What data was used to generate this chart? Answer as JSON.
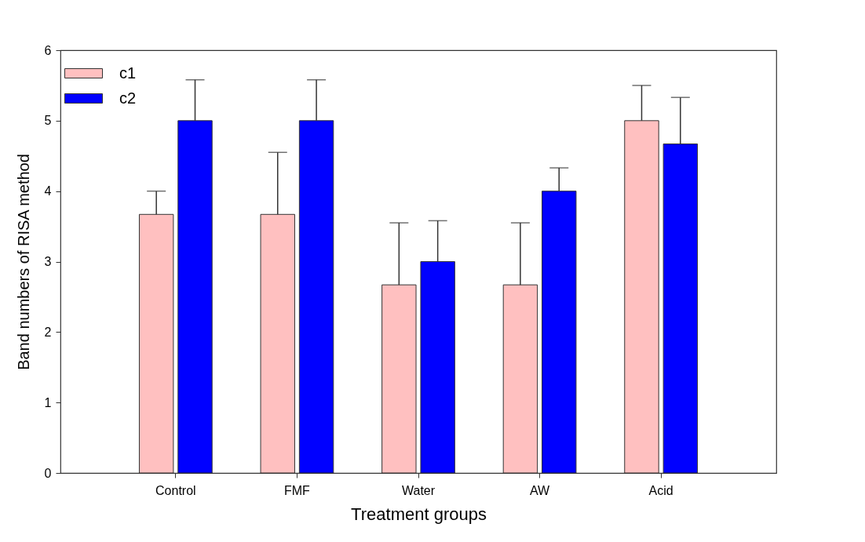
{
  "chart_data": {
    "type": "bar",
    "xlabel": "Treatment groups",
    "ylabel": "Band numbers of RISA method",
    "categories": [
      "Control",
      "FMF",
      "Water",
      "AW",
      "Acid"
    ],
    "series": [
      {
        "name": "c1",
        "color": "#ffc0c0",
        "values": [
          3.67,
          3.67,
          2.67,
          2.67,
          5
        ],
        "errors": [
          [
            3.67,
            4
          ],
          [
            3.67,
            4.55
          ],
          [
            2.67,
            3.55
          ],
          [
            2.67,
            3.55
          ],
          [
            5,
            5.5
          ]
        ]
      },
      {
        "name": "c2",
        "color": "#0000ff",
        "values": [
          5,
          5,
          3,
          4,
          4.67
        ],
        "errors": [
          [
            5,
            5.58
          ],
          [
            5,
            5.58
          ],
          [
            3,
            3.58
          ],
          [
            4,
            4.33
          ],
          [
            4.67,
            5.33
          ]
        ]
      }
    ],
    "ylim": [
      0,
      6
    ],
    "yticks": [
      0,
      1,
      2,
      3,
      4,
      5,
      6
    ],
    "grid": false,
    "legend": "top left"
  }
}
